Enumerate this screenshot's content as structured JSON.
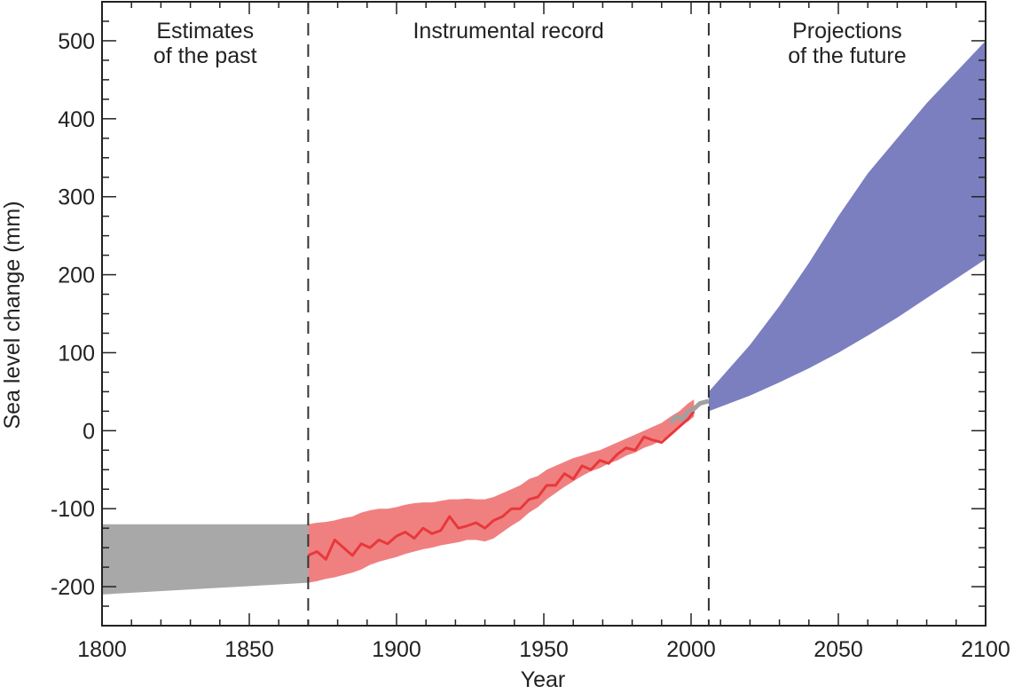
{
  "chart_data": {
    "type": "area",
    "xlabel": "Year",
    "ylabel": "Sea level change (mm)",
    "xlim": [
      1800,
      2100
    ],
    "ylim": [
      -250,
      550
    ],
    "xticks": [
      1800,
      1850,
      1900,
      1950,
      2000,
      2050,
      2100
    ],
    "yticks": [
      -200,
      -100,
      0,
      100,
      200,
      300,
      400,
      500
    ],
    "grid": false,
    "dividers": [
      1870,
      2006
    ],
    "section_labels": [
      {
        "lines": [
          "Estimates",
          "of the past"
        ],
        "x": 1835
      },
      {
        "lines": [
          "Instrumental record"
        ],
        "x": 1938
      },
      {
        "lines": [
          "Projections",
          "of the future"
        ],
        "x": 2053
      }
    ],
    "colors": {
      "past": "#a8a8a8",
      "instrumental_band": "#f08080",
      "instrumental_line": "#e8383c",
      "satellite": "#a0a0a0",
      "projection": "#7b7fbf"
    },
    "past_estimates": {
      "x": [
        1800,
        1870
      ],
      "upper": [
        -120,
        -120
      ],
      "lower": [
        -210,
        -195
      ]
    },
    "instrumental": {
      "x": [
        1870,
        1873,
        1876,
        1879,
        1882,
        1885,
        1888,
        1891,
        1894,
        1897,
        1900,
        1903,
        1906,
        1909,
        1912,
        1915,
        1918,
        1921,
        1924,
        1927,
        1930,
        1933,
        1936,
        1939,
        1942,
        1945,
        1948,
        1951,
        1954,
        1957,
        1960,
        1963,
        1966,
        1969,
        1972,
        1975,
        1978,
        1981,
        1984,
        1987,
        1990,
        1993,
        1996,
        1999,
        2001
      ],
      "values": [
        -160,
        -155,
        -165,
        -140,
        -150,
        -160,
        -145,
        -150,
        -140,
        -145,
        -135,
        -130,
        -138,
        -125,
        -132,
        -128,
        -110,
        -125,
        -122,
        -118,
        -125,
        -115,
        -110,
        -100,
        -100,
        -88,
        -85,
        -70,
        -70,
        -55,
        -62,
        -45,
        -50,
        -38,
        -42,
        -30,
        -22,
        -25,
        -8,
        -12,
        -15,
        -5,
        5,
        15,
        25
      ],
      "upper": [
        -120,
        -118,
        -117,
        -115,
        -112,
        -110,
        -105,
        -102,
        -100,
        -100,
        -98,
        -95,
        -93,
        -92,
        -92,
        -90,
        -88,
        -88,
        -87,
        -88,
        -88,
        -85,
        -80,
        -75,
        -70,
        -62,
        -58,
        -50,
        -45,
        -40,
        -35,
        -32,
        -28,
        -25,
        -20,
        -15,
        -10,
        -5,
        0,
        5,
        10,
        18,
        25,
        35,
        40
      ],
      "lower": [
        -195,
        -193,
        -190,
        -188,
        -185,
        -182,
        -178,
        -172,
        -168,
        -165,
        -162,
        -158,
        -155,
        -152,
        -150,
        -147,
        -145,
        -143,
        -140,
        -140,
        -142,
        -138,
        -130,
        -122,
        -115,
        -105,
        -98,
        -88,
        -80,
        -72,
        -65,
        -58,
        -52,
        -48,
        -42,
        -38,
        -32,
        -28,
        -22,
        -18,
        -12,
        -5,
        5,
        12,
        18
      ]
    },
    "satellite": {
      "x": [
        1993,
        1995,
        1997,
        1999,
        2001,
        2003,
        2006
      ],
      "values": [
        10,
        18,
        15,
        25,
        28,
        35,
        38
      ]
    },
    "projections": {
      "x": [
        2006,
        2020,
        2030,
        2040,
        2050,
        2060,
        2070,
        2080,
        2090,
        2100
      ],
      "upper": [
        50,
        110,
        160,
        215,
        275,
        330,
        375,
        420,
        460,
        500
      ],
      "lower": [
        25,
        45,
        62,
        80,
        100,
        122,
        145,
        170,
        195,
        220
      ]
    }
  }
}
